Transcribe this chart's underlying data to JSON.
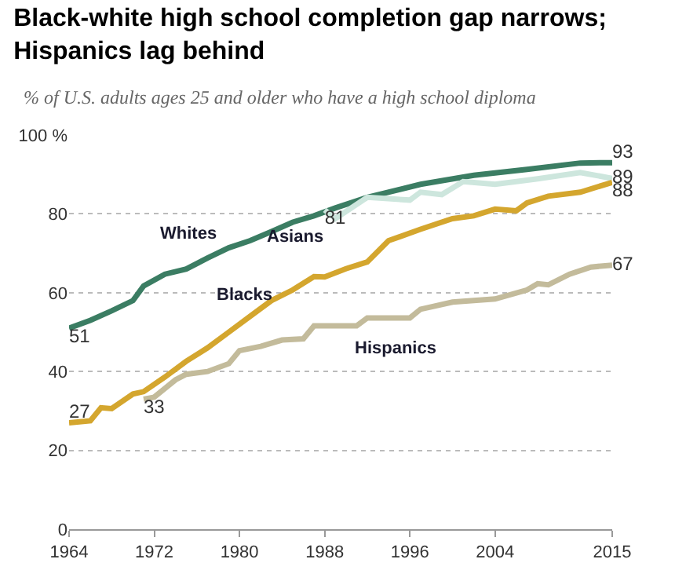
{
  "chart_data": {
    "type": "line",
    "title": "Black-white high school completion gap narrows;\nHispanics lag behind",
    "subtitle": "% of U.S. adults ages 25 and older who have a high school diploma",
    "xlim": [
      1964,
      2015
    ],
    "xticks": [
      1964,
      1972,
      1980,
      1988,
      1996,
      2004,
      2015
    ],
    "ylim": [
      0,
      100
    ],
    "yticks": [
      0,
      20,
      40,
      60,
      80,
      {
        "value": 100,
        "label": "100 %"
      }
    ],
    "grid": "y",
    "legend": false,
    "line_style": "solid",
    "marker": "none",
    "series": [
      {
        "name": "Whites",
        "color": "#3b7d63",
        "x": [
          1964,
          1966,
          1968,
          1970,
          1971,
          1973,
          1975,
          1977,
          1979,
          1981,
          1983,
          1985,
          1987,
          1989,
          1992,
          1997,
          2002,
          2007,
          2012,
          2015
        ],
        "values": [
          51,
          53,
          55.4,
          58,
          61.7,
          64.7,
          66,
          68.8,
          71.4,
          73.2,
          75.5,
          77.9,
          79.5,
          81.5,
          84.2,
          87.5,
          89.8,
          91.3,
          92.9,
          93
        ],
        "value_labels": [
          "51",
          null,
          null,
          null,
          null,
          null,
          null,
          null,
          null,
          null,
          null,
          null,
          null,
          null,
          null,
          null,
          null,
          null,
          null,
          "93"
        ]
      },
      {
        "name": "Asians",
        "color": "#cde6dd",
        "x": [
          1988,
          1989,
          1992,
          1996,
          1997,
          1999,
          2001,
          2004,
          2008,
          2012,
          2015
        ],
        "values": [
          81,
          78.8,
          84.2,
          83.5,
          85.5,
          84.9,
          88.2,
          87.5,
          88.9,
          90.5,
          89
        ],
        "value_labels": [
          "81",
          null,
          null,
          null,
          null,
          null,
          null,
          null,
          null,
          null,
          "89"
        ]
      },
      {
        "name": "Blacks",
        "color": "#d4a62e",
        "x": [
          1964,
          1966,
          1967,
          1968,
          1970,
          1971,
          1973,
          1975,
          1977,
          1979,
          1981,
          1983,
          1985,
          1987,
          1988,
          1990,
          1992,
          1994,
          1997,
          2000,
          2002,
          2004,
          2006,
          2007,
          2009,
          2012,
          2015
        ],
        "values": [
          27,
          27.5,
          30.8,
          30.6,
          34.3,
          34.9,
          38.6,
          42.6,
          46,
          50,
          54,
          58,
          60.7,
          64.1,
          64,
          66.1,
          67.8,
          73.2,
          76.1,
          78.8,
          79.5,
          81.2,
          80.8,
          82.8,
          84.5,
          85.5,
          88
        ],
        "value_labels": [
          "27",
          null,
          null,
          null,
          null,
          null,
          null,
          null,
          null,
          null,
          null,
          null,
          null,
          null,
          null,
          null,
          null,
          null,
          null,
          null,
          null,
          null,
          null,
          null,
          null,
          null,
          "88"
        ]
      },
      {
        "name": "Hispanics",
        "color": "#c3bb9b",
        "x": [
          1971,
          1972,
          1974,
          1975,
          1977,
          1979,
          1980,
          1982,
          1984,
          1986,
          1987,
          1991,
          1992,
          1996,
          1997,
          2000,
          2004,
          2007,
          2008,
          2009,
          2011,
          2013,
          2015
        ],
        "values": [
          33,
          33.5,
          37.9,
          39.3,
          40,
          42,
          45.3,
          46.4,
          48,
          48.3,
          51.6,
          51.6,
          53.6,
          53.6,
          55.8,
          57.6,
          58.4,
          60.7,
          62.3,
          62,
          64.7,
          66.5,
          67
        ],
        "value_labels": [
          "33",
          null,
          null,
          null,
          null,
          null,
          null,
          null,
          null,
          null,
          null,
          null,
          null,
          null,
          null,
          null,
          null,
          null,
          null,
          null,
          null,
          null,
          "67"
        ]
      }
    ]
  }
}
